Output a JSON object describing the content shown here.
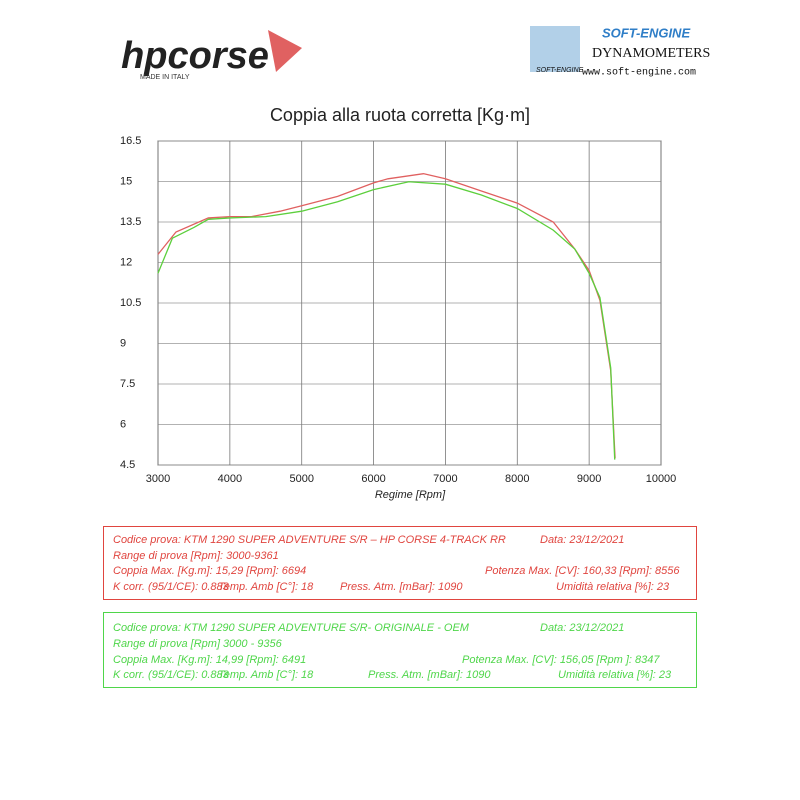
{
  "header": {
    "brand": "hpcorse",
    "tagline": "MADE IN ITALY",
    "dyno_brand": "SOFT-ENGINE",
    "dyno_subtitle": "DYNAMOMETERS",
    "dyno_url": "www.soft-engine.com",
    "dyno_logo_text": "SOFT-ENGINE"
  },
  "chart_data": {
    "type": "line",
    "title": "Coppia alla ruota corretta [Kg·m]",
    "x_label": "Regime [Rpm]",
    "xlim": [
      3000,
      10000
    ],
    "xticks": [
      3000,
      4000,
      5000,
      6000,
      7000,
      8000,
      9000,
      10000
    ],
    "ylim": [
      4.5,
      16.5
    ],
    "yticks": [
      16.5,
      15,
      13.5,
      12,
      10.5,
      9,
      7.5,
      6,
      4.5
    ],
    "grid": true,
    "series": [
      {
        "color": "#e06060",
        "x": [
          3000,
          3250,
          3700,
          4000,
          4300,
          4700,
          5000,
          5500,
          6000,
          6200,
          6694,
          7000,
          7500,
          8000,
          8500,
          8800,
          9000,
          9150,
          9300,
          9361
        ],
        "values": [
          12.3,
          13.13,
          13.65,
          13.7,
          13.7,
          13.9,
          14.1,
          14.45,
          14.95,
          15.1,
          15.29,
          15.1,
          14.65,
          14.2,
          13.5,
          12.5,
          11.7,
          10.6,
          8.0,
          4.75
        ]
      },
      {
        "color": "#5ccf3c",
        "x": [
          3000,
          3200,
          3500,
          3700,
          4000,
          4500,
          5000,
          5500,
          6000,
          6491,
          7000,
          7500,
          8000,
          8500,
          8800,
          9000,
          9150,
          9300,
          9356
        ],
        "values": [
          11.6,
          12.9,
          13.3,
          13.6,
          13.65,
          13.7,
          13.9,
          14.25,
          14.7,
          14.99,
          14.9,
          14.5,
          14.0,
          13.2,
          12.5,
          11.6,
          10.7,
          8.1,
          4.7
        ]
      }
    ]
  },
  "tests": [
    {
      "rows": [
        [
          "Codice prova: KTM 1290  SUPER ADVENTURE S/R – HP CORSE  4-TRACK RR",
          "Data: 23/12/2021"
        ],
        [
          "Range di prova  [Rpm]: 3000-9361"
        ],
        [
          "Coppia Max. [Kg.m]: 15,29  [Rpm]: 6694",
          "Potenza Max. [CV]: 160,33 [Rpm]: 8556"
        ],
        [
          "K corr. (95/1/CE): 0.883",
          "Temp. Amb [C°]: 18",
          "Press. Atm. [mBar]: 1090",
          "Umidità relativa [%]: 23"
        ]
      ]
    },
    {
      "rows": [
        [
          "Codice prova: KTM 1290 SUPER ADVENTURE S/R- ORIGINALE - OEM",
          "Data: 23/12/2021"
        ],
        [
          "Range di prova [Rpm] 3000 - 9356"
        ],
        [
          "Coppia Max. [Kg.m]: 14,99  [Rpm]: 6491",
          "Potenza Max. [CV]: 156,05  [Rpm ]: 8347"
        ],
        [
          "K corr. (95/1/CE): 0.883",
          "Temp. Amb [C°]: 18",
          "Press. Atm. [mBar]: 1090",
          "Umidità relativa [%]: 23"
        ]
      ]
    }
  ]
}
